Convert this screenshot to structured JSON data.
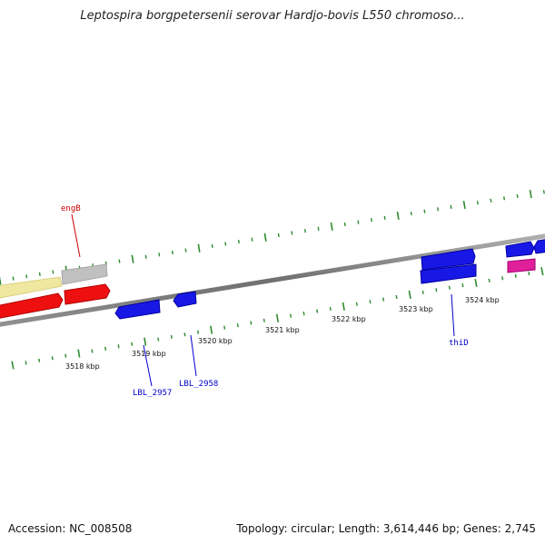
{
  "title": "Leptospira borgpetersenii serovar Hardjo-bovis L550 chromoso...",
  "footer": {
    "accession": "Accession: NC_008508",
    "stats": "Topology: circular; Length: 3,614,446 bp; Genes: 2,745"
  },
  "colors": {
    "background": "#ffffff",
    "backbone": "#808080",
    "tick": "#2e8b2e",
    "gene_blue": "#1818e6",
    "gene_red": "#ee1010",
    "gene_yellow": "#f0e8a0",
    "gene_gray": "#c0c0c0",
    "gene_magenta": "#e0209a",
    "label_red": "#cc0000",
    "label_blue": "#0000cc"
  },
  "scale": {
    "tick_labels": [
      "3518 kbp",
      "3519 kbp",
      "3520 kbp",
      "3521 kbp",
      "3522 kbp",
      "3523 kbp",
      "3524 kbp"
    ]
  },
  "gene_labels": [
    {
      "text": "engB",
      "color": "red"
    },
    {
      "text": "LBL_2957",
      "color": "blue"
    },
    {
      "text": "LBL_2958",
      "color": "blue"
    },
    {
      "text": "thiD",
      "color": "blue"
    }
  ]
}
